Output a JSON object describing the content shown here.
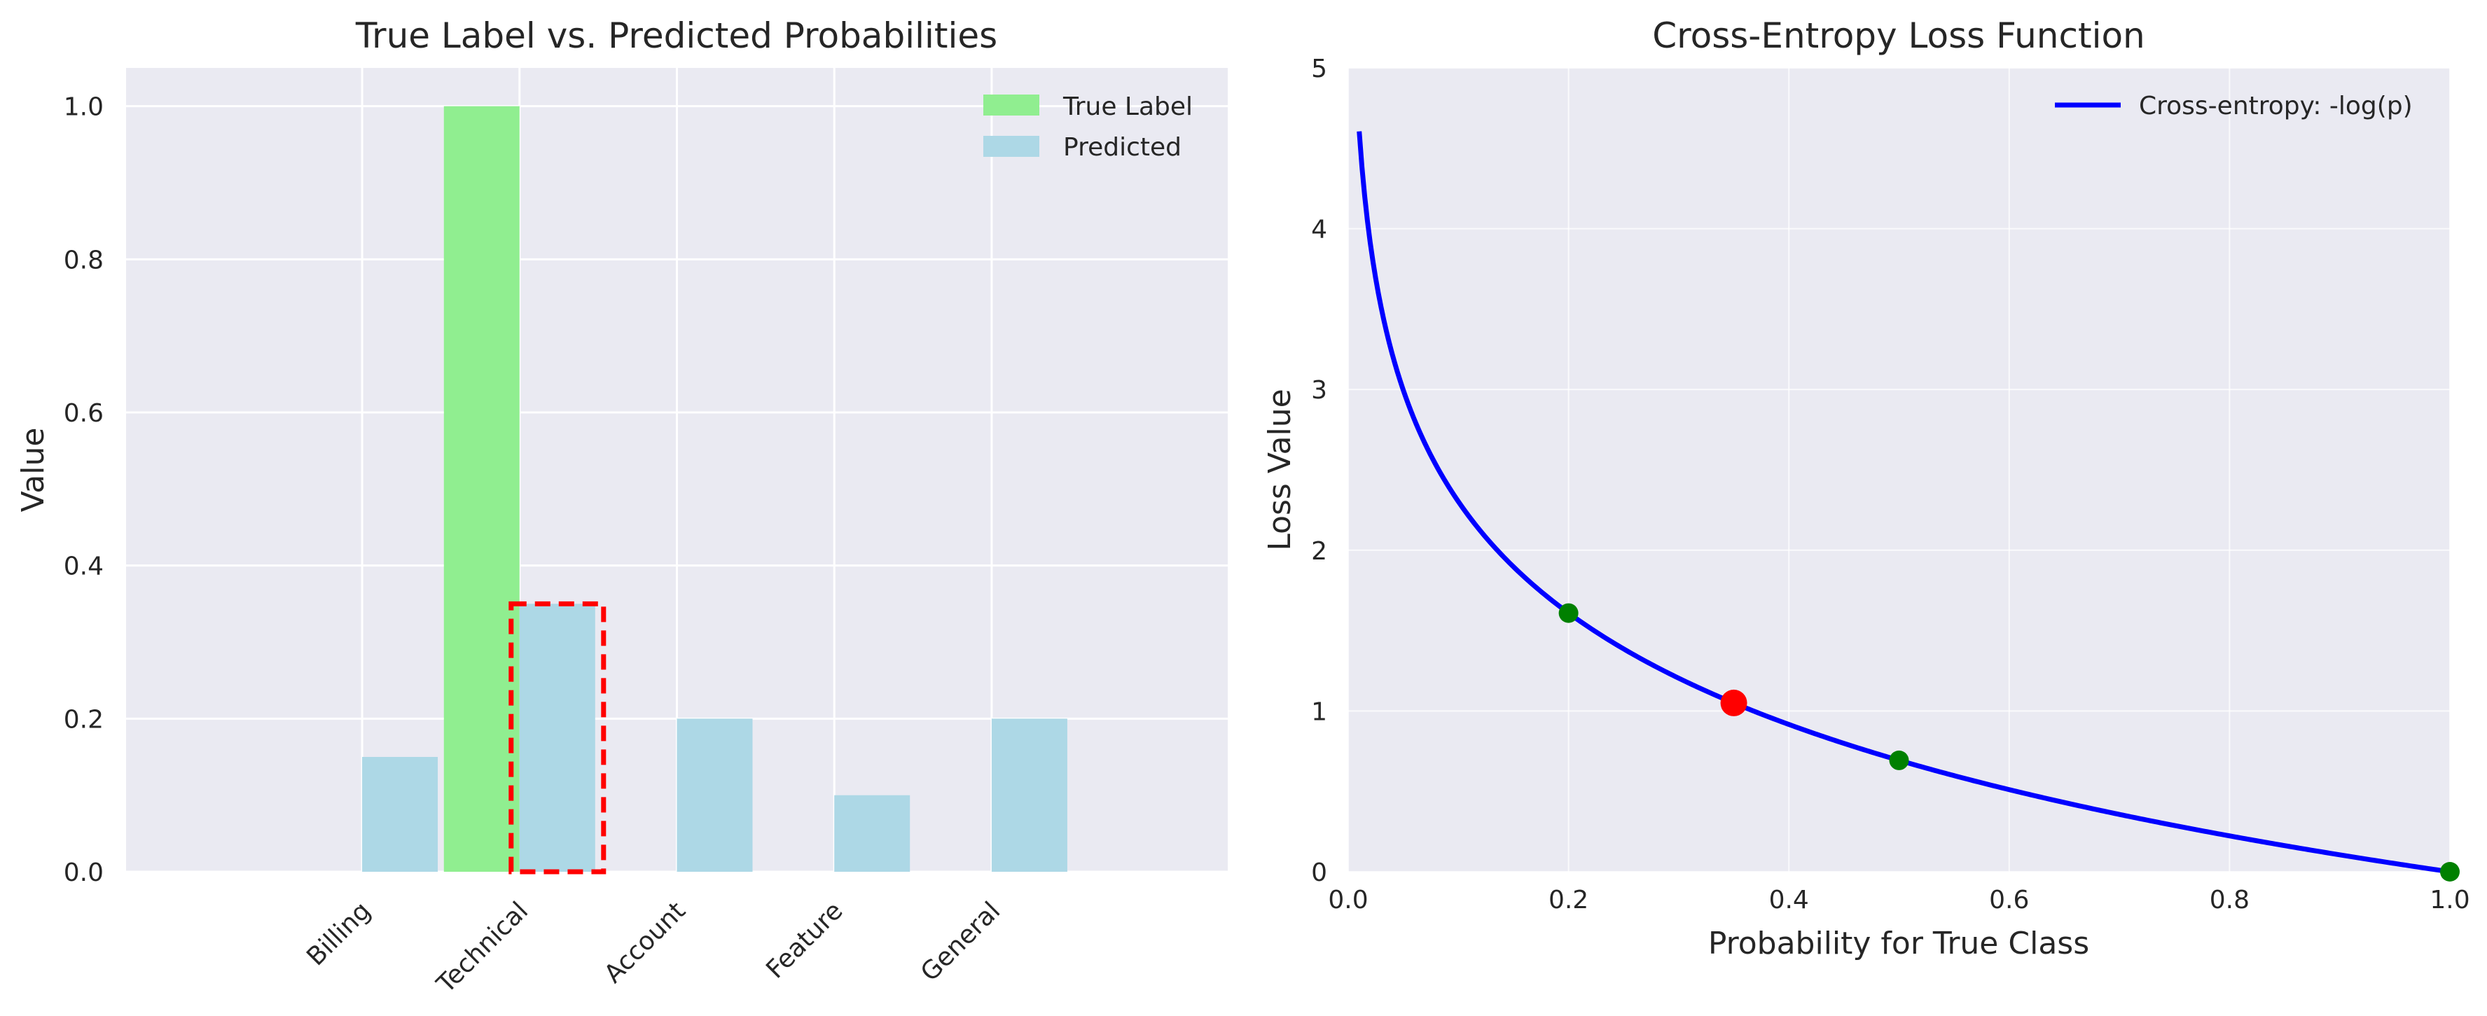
{
  "chart_data": [
    {
      "type": "bar",
      "title": "True Label vs. Predicted Probabilities",
      "xlabel": "",
      "ylabel": "Value",
      "categories": [
        "Billing",
        "Technical",
        "Account",
        "Feature",
        "General"
      ],
      "series": [
        {
          "name": "True Label",
          "values": [
            0.0,
            1.0,
            0.0,
            0.0,
            0.0
          ],
          "color": "#90ee90"
        },
        {
          "name": "Predicted",
          "values": [
            0.15,
            0.35,
            0.2,
            0.1,
            0.2
          ],
          "color": "#add8e6"
        }
      ],
      "ylim": [
        0,
        1.05
      ],
      "yticks": [
        "0.0",
        "0.2",
        "0.4",
        "0.6",
        "0.8",
        "1.0"
      ],
      "highlight": {
        "category": "Technical",
        "series": "Predicted",
        "style": "red dashed box",
        "color": "#ff0000"
      },
      "legend": "top-right",
      "grid": true,
      "background": "#eaeaf2"
    },
    {
      "type": "line",
      "title": "Cross-Entropy Loss Function",
      "xlabel": "Probability for True Class",
      "ylabel": "Loss Value",
      "series": [
        {
          "name": "Cross-entropy: -log(p)",
          "function": "-ln(p)",
          "p_range": [
            0.01,
            1.0
          ],
          "color": "#0000ff"
        }
      ],
      "points": [
        {
          "p": 0.2,
          "loss": 1.609,
          "color": "#008000"
        },
        {
          "p": 0.35,
          "loss": 1.05,
          "color": "#ff0000"
        },
        {
          "p": 0.5,
          "loss": 0.693,
          "color": "#008000"
        },
        {
          "p": 1.0,
          "loss": 0.0,
          "color": "#008000"
        }
      ],
      "xlim": [
        0,
        1.0
      ],
      "ylim": [
        0,
        5
      ],
      "xticks": [
        "0.0",
        "0.2",
        "0.4",
        "0.6",
        "0.8",
        "1.0"
      ],
      "yticks": [
        "0",
        "1",
        "2",
        "3",
        "4",
        "5"
      ],
      "legend": "top-right",
      "grid": true,
      "background": "#eaeaf2"
    }
  ]
}
